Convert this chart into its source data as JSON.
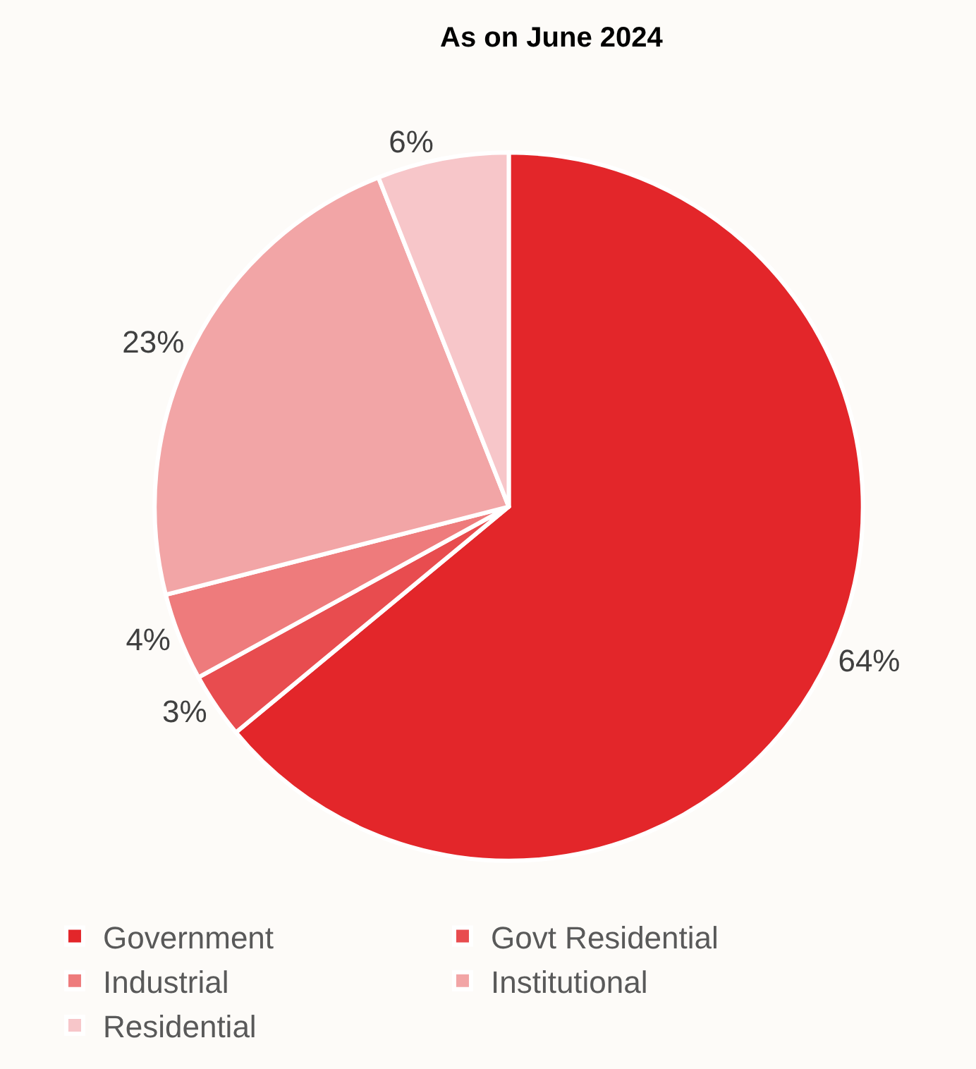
{
  "chart_data": {
    "type": "pie",
    "title": "As on June 2024",
    "categories": [
      "Government",
      "Govt Residential",
      "Industrial",
      "Institutional",
      "Residential"
    ],
    "values": [
      64,
      3,
      4,
      23,
      6
    ],
    "value_labels": [
      "64%",
      "3%",
      "4%",
      "23%",
      "6%"
    ],
    "colors": [
      "#e3262a",
      "#e84c4f",
      "#ee7b7c",
      "#f2a5a6",
      "#f7c6c9"
    ],
    "legend": "bottom"
  }
}
